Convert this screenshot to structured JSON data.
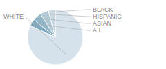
{
  "chart_data": {
    "type": "pie",
    "categories": [
      "WHITE",
      "A.I.",
      "ASIAN",
      "HISPANIC",
      "BLACK"
    ],
    "values": [
      82,
      4,
      5,
      5,
      4
    ],
    "colors": [
      "#d5e2eb",
      "#7da8bf",
      "#8fb5c7",
      "#b0c8d4",
      "#c8d8e2"
    ]
  }
}
